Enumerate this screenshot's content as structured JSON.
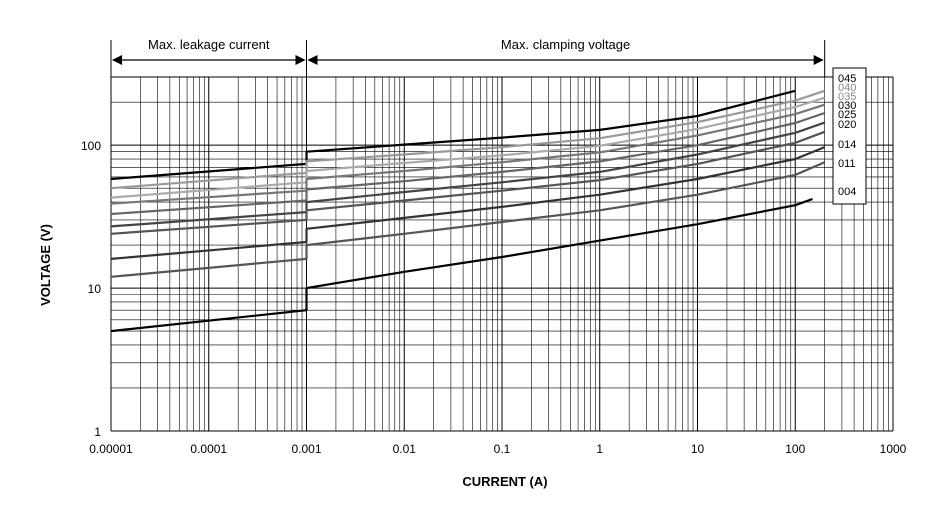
{
  "chart_data": {
    "type": "line",
    "x_scale": "log",
    "y_scale": "log",
    "xlim": [
      1e-05,
      1000
    ],
    "ylim": [
      1,
      300
    ],
    "x_ticks": [
      "0.00001",
      "0.0001",
      "0.001",
      "0.01",
      "0.1",
      "1",
      "10",
      "100",
      "1000"
    ],
    "y_ticks": [
      "1",
      "10",
      "100"
    ],
    "xlabel": "CURRENT (A)",
    "ylabel": "VOLTAGE (V)",
    "grid": true,
    "regions": [
      {
        "label": "Max. leakage current",
        "from": 1e-05,
        "to": 0.001
      },
      {
        "label": "Max. clamping voltage",
        "from": 0.001,
        "to": 200
      }
    ],
    "series": [
      {
        "name": "045",
        "color": "#000000",
        "leak": [
          [
            1e-05,
            58
          ],
          [
            0.001,
            74
          ]
        ],
        "clamp": [
          [
            0.001,
            90
          ],
          [
            0.01,
            101
          ],
          [
            0.1,
            113
          ],
          [
            1,
            128
          ],
          [
            10,
            160
          ],
          [
            100,
            240
          ]
        ]
      },
      {
        "name": "040",
        "color": "#999999",
        "leak": [
          [
            1e-05,
            50
          ],
          [
            0.001,
            64
          ]
        ],
        "clamp": [
          [
            0.001,
            77
          ],
          [
            0.01,
            86
          ],
          [
            0.1,
            97
          ],
          [
            1,
            112
          ],
          [
            10,
            145
          ],
          [
            100,
            205
          ],
          [
            200,
            240
          ]
        ]
      },
      {
        "name": "035",
        "color": "#aaaaaa",
        "leak": [
          [
            1e-05,
            43
          ],
          [
            0.001,
            55
          ]
        ],
        "clamp": [
          [
            0.001,
            66
          ],
          [
            0.01,
            75
          ],
          [
            0.1,
            85
          ],
          [
            1,
            99
          ],
          [
            10,
            130
          ],
          [
            100,
            185
          ],
          [
            200,
            215
          ]
        ]
      },
      {
        "name": "030",
        "color": "#777777",
        "leak": [
          [
            1e-05,
            39
          ],
          [
            0.001,
            48
          ]
        ],
        "clamp": [
          [
            0.001,
            58
          ],
          [
            0.01,
            66
          ],
          [
            0.1,
            76
          ],
          [
            1,
            89
          ],
          [
            10,
            117
          ],
          [
            100,
            165
          ],
          [
            200,
            192
          ]
        ]
      },
      {
        "name": "025",
        "color": "#666666",
        "leak": [
          [
            1e-05,
            33
          ],
          [
            0.001,
            41
          ]
        ],
        "clamp": [
          [
            0.001,
            49
          ],
          [
            0.01,
            56
          ],
          [
            0.1,
            65
          ],
          [
            1,
            77
          ],
          [
            10,
            100
          ],
          [
            100,
            143
          ],
          [
            200,
            168
          ]
        ]
      },
      {
        "name": "020",
        "color": "#444444",
        "leak": [
          [
            1e-05,
            27
          ],
          [
            0.001,
            34
          ]
        ],
        "clamp": [
          [
            0.001,
            40
          ],
          [
            0.01,
            47
          ],
          [
            0.1,
            55
          ],
          [
            1,
            65
          ],
          [
            10,
            86
          ],
          [
            100,
            122
          ],
          [
            200,
            144
          ]
        ]
      },
      {
        "name": "",
        "color": "#555555",
        "leak": [
          [
            1e-05,
            24
          ],
          [
            0.001,
            30
          ]
        ],
        "clamp": [
          [
            0.001,
            35
          ],
          [
            0.01,
            41
          ],
          [
            0.1,
            48
          ],
          [
            1,
            57
          ],
          [
            10,
            74
          ],
          [
            100,
            104
          ],
          [
            200,
            124
          ]
        ]
      },
      {
        "name": "014",
        "color": "#333333",
        "leak": [
          [
            1e-05,
            16
          ],
          [
            0.001,
            21
          ]
        ],
        "clamp": [
          [
            0.001,
            26
          ],
          [
            0.01,
            31
          ],
          [
            0.1,
            37
          ],
          [
            1,
            45
          ],
          [
            10,
            58
          ],
          [
            100,
            80
          ],
          [
            200,
            97
          ]
        ]
      },
      {
        "name": "011",
        "color": "#555555",
        "leak": [
          [
            1e-05,
            12
          ],
          [
            0.001,
            16
          ]
        ],
        "clamp": [
          [
            0.001,
            20
          ],
          [
            0.01,
            24
          ],
          [
            0.1,
            29
          ],
          [
            1,
            35
          ],
          [
            10,
            45
          ],
          [
            100,
            62
          ],
          [
            200,
            76
          ]
        ]
      },
      {
        "name": "004",
        "color": "#000000",
        "leak": [
          [
            1e-05,
            5
          ],
          [
            0.001,
            7
          ]
        ],
        "clamp": [
          [
            0.001,
            10
          ],
          [
            0.01,
            13
          ],
          [
            0.1,
            16.5
          ],
          [
            1,
            21.5
          ],
          [
            10,
            28
          ],
          [
            100,
            38
          ],
          [
            150,
            42
          ]
        ]
      }
    ]
  }
}
